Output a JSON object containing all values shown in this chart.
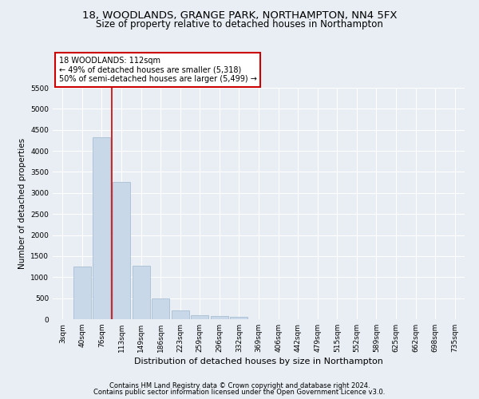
{
  "title1": "18, WOODLANDS, GRANGE PARK, NORTHAMPTON, NN4 5FX",
  "title2": "Size of property relative to detached houses in Northampton",
  "xlabel": "Distribution of detached houses by size in Northampton",
  "ylabel": "Number of detached properties",
  "footer1": "Contains HM Land Registry data © Crown copyright and database right 2024.",
  "footer2": "Contains public sector information licensed under the Open Government Licence v3.0.",
  "categories": [
    "3sqm",
    "40sqm",
    "76sqm",
    "113sqm",
    "149sqm",
    "186sqm",
    "223sqm",
    "259sqm",
    "296sqm",
    "332sqm",
    "369sqm",
    "406sqm",
    "442sqm",
    "479sqm",
    "515sqm",
    "552sqm",
    "589sqm",
    "625sqm",
    "662sqm",
    "698sqm",
    "735sqm"
  ],
  "values": [
    0,
    1260,
    4330,
    3270,
    1280,
    490,
    200,
    100,
    70,
    50,
    0,
    0,
    0,
    0,
    0,
    0,
    0,
    0,
    0,
    0,
    0
  ],
  "bar_color": "#c8d8e8",
  "bar_edgecolor": "#a0b8d0",
  "vline_x": 2.5,
  "vline_color": "#cc0000",
  "annotation_text": "18 WOODLANDS: 112sqm\n← 49% of detached houses are smaller (5,318)\n50% of semi-detached houses are larger (5,499) →",
  "annotation_box_facecolor": "#ffffff",
  "annotation_box_edgecolor": "#cc0000",
  "ylim": [
    0,
    5500
  ],
  "yticks": [
    0,
    500,
    1000,
    1500,
    2000,
    2500,
    3000,
    3500,
    4000,
    4500,
    5000,
    5500
  ],
  "background_color": "#e8eef4",
  "plot_background": "#e8eef4",
  "title1_fontsize": 9.5,
  "title2_fontsize": 8.5,
  "xlabel_fontsize": 8,
  "ylabel_fontsize": 7.5,
  "tick_fontsize": 6.5,
  "ann_fontsize": 7,
  "footer_fontsize": 6
}
